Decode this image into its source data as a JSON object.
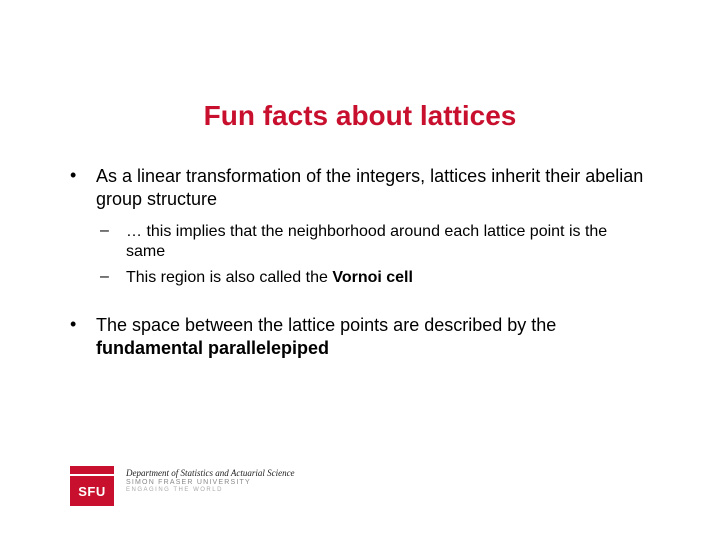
{
  "title": "Fun facts about lattices",
  "bullets": [
    {
      "mark": "•",
      "text": "As a linear transformation of the integers, lattices inherit their abelian group structure",
      "subs": [
        {
          "mark": "–",
          "text": "… this implies that the neighborhood around each lattice point is the same"
        },
        {
          "mark": "–",
          "prefix": "This region is also called the ",
          "bold": "Vornoi cell"
        }
      ]
    },
    {
      "mark": "•",
      "prefix": "The space between the lattice points are described by the ",
      "bold": "fundamental parallelepiped"
    }
  ],
  "footer": {
    "logo_text": "SFU",
    "department": "Department of Statistics and Actuarial Science",
    "university": "SIMON FRASER UNIVERSITY",
    "tagline": "ENGAGING THE WORLD"
  },
  "colors": {
    "title": "#c8102e",
    "logo": "#c8102e",
    "text": "#000000",
    "background": "#ffffff"
  }
}
